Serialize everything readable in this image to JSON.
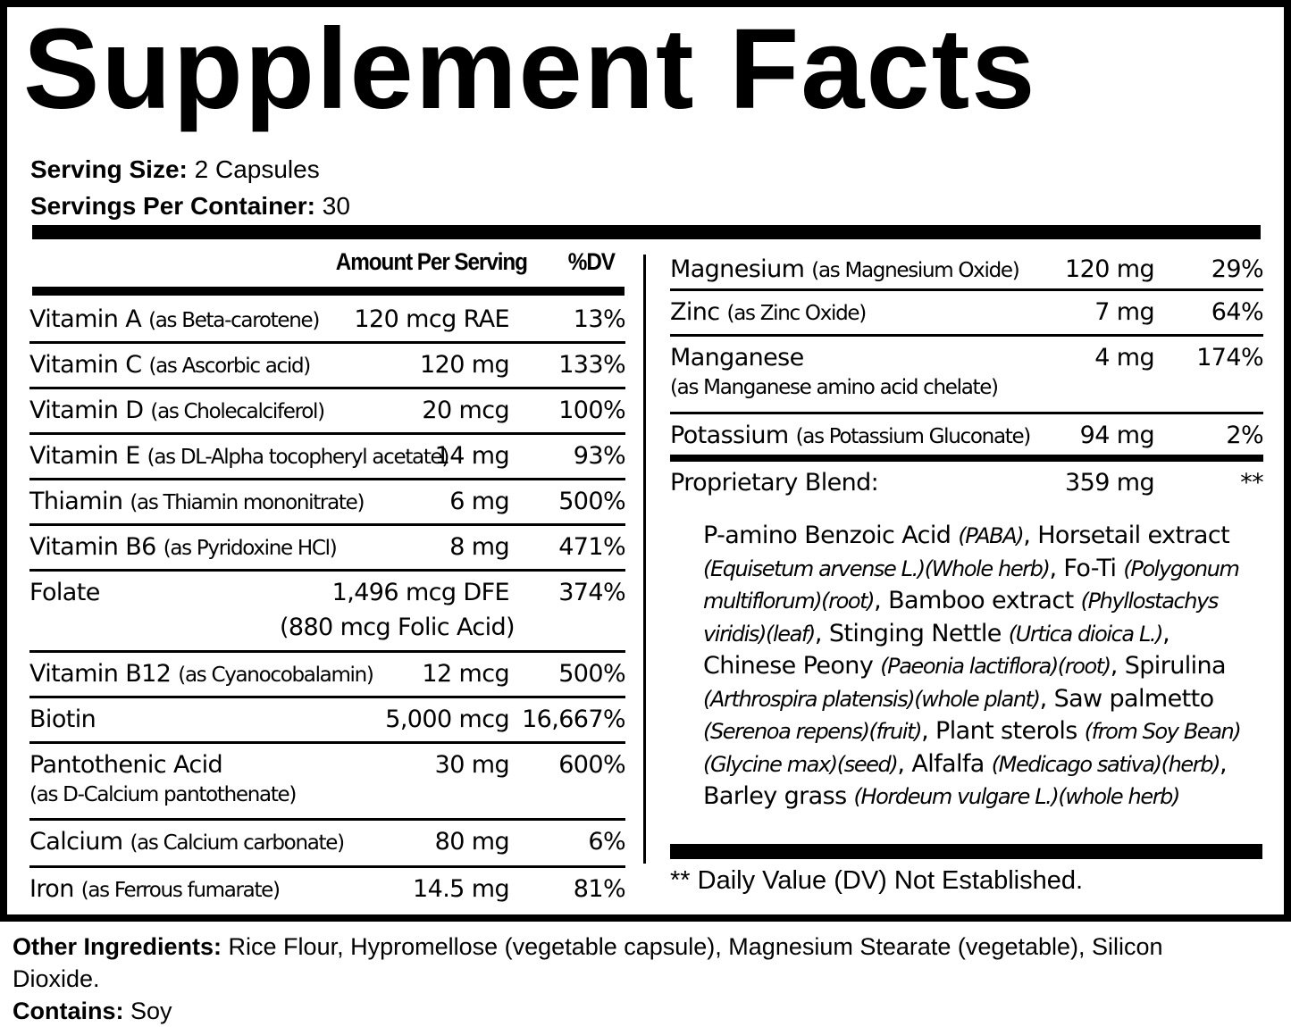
{
  "title": "Supplement Facts",
  "serving": {
    "size_label": "Serving Size:",
    "size_value": "2 Capsules",
    "per_container_label": "Servings Per Container:",
    "per_container_value": "30"
  },
  "headers": {
    "amount": "Amount Per Serving",
    "dv": "%DV"
  },
  "left_rows": [
    {
      "name": "Vitamin A",
      "source": "(as Beta-carotene)",
      "amount": "120 mcg RAE",
      "dv": "13%"
    },
    {
      "name": "Vitamin C",
      "source": "(as Ascorbic acid)",
      "amount": "120 mg",
      "dv": "133%"
    },
    {
      "name": "Vitamin D",
      "source": "(as Cholecalciferol)",
      "amount": "20 mcg",
      "dv": "100%"
    },
    {
      "name": "Vitamin E",
      "source": "(as DL-Alpha tocopheryl acetate)",
      "amount": "14 mg",
      "dv": "93%"
    },
    {
      "name": "Thiamin",
      "source": "(as Thiamin mononitrate)",
      "amount": "6 mg",
      "dv": "500%"
    },
    {
      "name": "Vitamin B6",
      "source": "(as Pyridoxine HCl)",
      "amount": "8 mg",
      "dv": "471%"
    },
    {
      "name": "Folate",
      "source": "",
      "amount": "1,496 mcg DFE",
      "amount_line2": "(880 mcg Folic Acid)",
      "dv": "374%"
    },
    {
      "name": "Vitamin B12",
      "source": "(as Cyanocobalamin)",
      "amount": "12 mcg",
      "dv": "500%"
    },
    {
      "name": "Biotin",
      "source": "",
      "amount": "5,000 mcg",
      "dv": "16,667%"
    },
    {
      "name": "Pantothenic Acid",
      "source_line2": "(as  D-Calcium pantothenate)",
      "amount": "30 mg",
      "dv": "600%"
    },
    {
      "name": "Calcium",
      "source": "(as Calcium carbonate)",
      "amount": "80 mg",
      "dv": "6%"
    },
    {
      "name": "Iron",
      "source": "(as Ferrous fumarate)",
      "amount": "14.5 mg",
      "dv": "81%"
    }
  ],
  "right_rows": [
    {
      "name": "Magnesium",
      "source": "(as Magnesium Oxide)",
      "amount": "120 mg",
      "dv": "29%"
    },
    {
      "name": "Zinc",
      "source": "(as Zinc Oxide)",
      "amount": "7 mg",
      "dv": "64%"
    },
    {
      "name": "Manganese",
      "source_line2": "(as Manganese amino acid chelate)",
      "amount": "4 mg",
      "dv": "174%"
    },
    {
      "name": "Potassium",
      "source": "(as Potassium Gluconate)",
      "amount": "94 mg",
      "dv": "2%"
    },
    {
      "name": "Proprietary Blend:",
      "source": "",
      "amount": "359 mg",
      "dv": "**"
    }
  ],
  "blend": [
    {
      "t": "P-amino Benzoic Acid ",
      "i": false
    },
    {
      "t": "(PABA)",
      "i": true
    },
    {
      "t": ", Horsetail extract ",
      "i": false
    },
    {
      "t": "(Equisetum arvense L.)(Whole herb)",
      "i": true
    },
    {
      "t": ", Fo-Ti ",
      "i": false
    },
    {
      "t": "(Polygonum multiflorum)(root)",
      "i": true
    },
    {
      "t": ", Bamboo extract ",
      "i": false
    },
    {
      "t": "(Phyllostachys viridis)(leaf)",
      "i": true
    },
    {
      "t": ", Stinging Nettle  ",
      "i": false
    },
    {
      "t": "(Urtica dioica L.)",
      "i": true
    },
    {
      "t": ", Chinese Peony ",
      "i": false
    },
    {
      "t": "(Paeonia lactiflora)(root)",
      "i": true
    },
    {
      "t": ", Spirulina ",
      "i": false
    },
    {
      "t": "(Arthrospira platensis)(whole plant)",
      "i": true
    },
    {
      "t": ", Saw palmetto ",
      "i": false
    },
    {
      "t": "(Serenoa repens)(fruit)",
      "i": true
    },
    {
      "t": ", Plant sterols ",
      "i": false
    },
    {
      "t": "(from Soy Bean)(Glycine max)(seed)",
      "i": true
    },
    {
      "t": ", Alfalfa ",
      "i": false
    },
    {
      "t": "(Medicago sativa)(herb)",
      "i": true
    },
    {
      "t": ", Barley grass ",
      "i": false
    },
    {
      "t": "(Hordeum vulgare L.)(whole herb)",
      "i": true
    }
  ],
  "footnote": "** Daily Value (DV) Not Established.",
  "other": {
    "label": "Other Ingredients:",
    "value": "Rice Flour, Hypromellose (vegetable capsule), Magnesium Stearate (vegetable), Silicon Dioxide.",
    "contains_label": "Contains:",
    "contains_value": "Soy"
  }
}
